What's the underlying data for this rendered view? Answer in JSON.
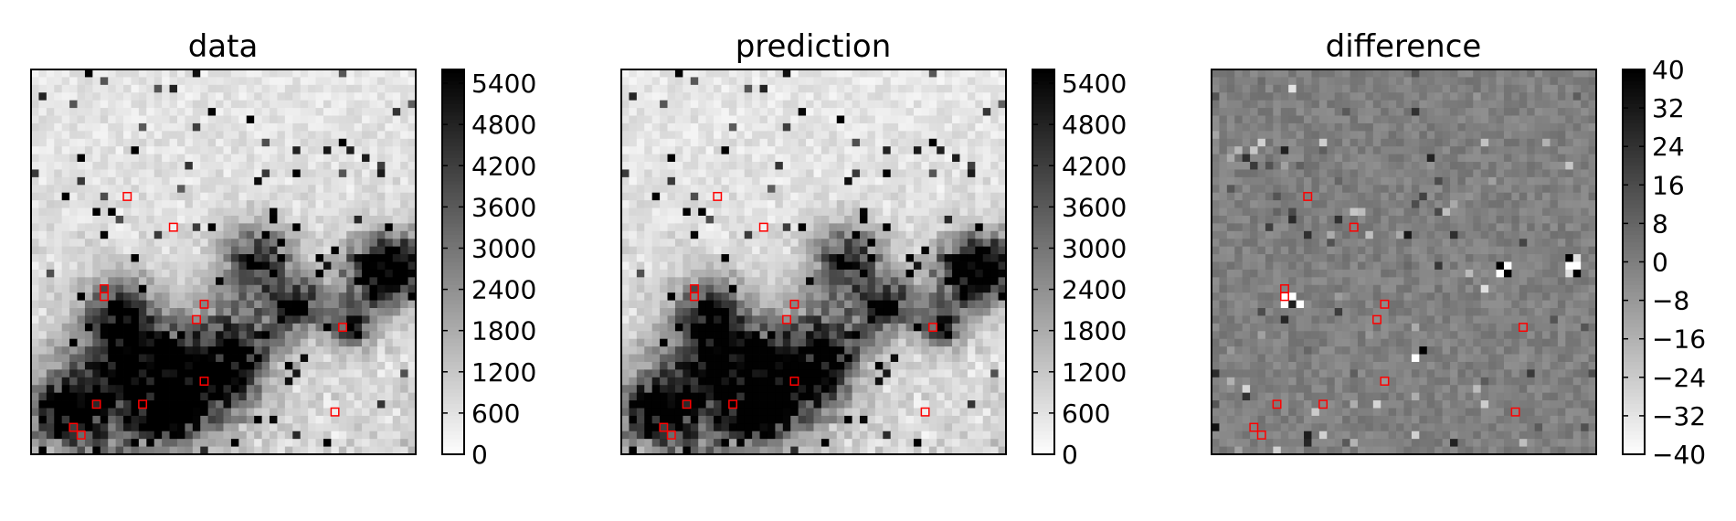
{
  "chart_data": [
    {
      "type": "heatmap",
      "title": "data",
      "colormap": "gray_r",
      "colorbar": {
        "min": 0,
        "max": 5600,
        "ticks": [
          0,
          600,
          1200,
          1800,
          2400,
          3000,
          3600,
          4200,
          4800,
          5400
        ]
      },
      "grid": false,
      "xlabel": "",
      "ylabel": "",
      "marker_color": "#ff0000"
    },
    {
      "type": "heatmap",
      "title": "prediction",
      "colormap": "gray_r",
      "colorbar": {
        "min": 0,
        "max": 5600,
        "ticks": [
          0,
          600,
          1200,
          1800,
          2400,
          3000,
          3600,
          4200,
          4800,
          5400
        ]
      },
      "grid": false,
      "xlabel": "",
      "ylabel": "",
      "marker_color": "#ff0000"
    },
    {
      "type": "heatmap",
      "title": "difference",
      "colormap": "gray_r",
      "colorbar": {
        "min": -40,
        "max": 40,
        "ticks": [
          40,
          32,
          24,
          16,
          8,
          0,
          -8,
          -16,
          -24,
          -32,
          -40
        ],
        "tick_labels": [
          "40",
          "32",
          "24",
          "16",
          "8",
          "0",
          "−8",
          "−16",
          "−24",
          "−32",
          "−40"
        ]
      },
      "grid": false,
      "xlabel": "",
      "ylabel": "",
      "marker_color": "#ff0000"
    }
  ]
}
